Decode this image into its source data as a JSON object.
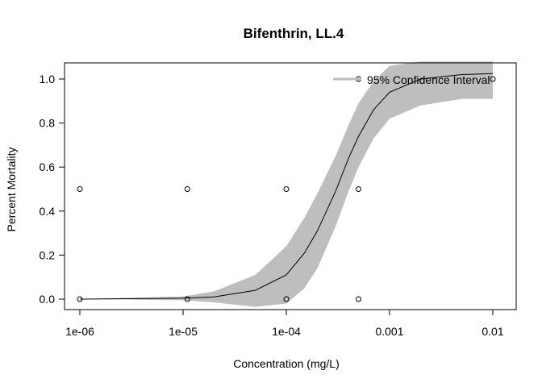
{
  "chart_data": {
    "type": "scatter",
    "title": "Bifenthrin, LL.4",
    "xlabel": "Concentration (mg/L)",
    "ylabel": "Percent Mortality",
    "xscale": "log",
    "xlim": [
      1e-06,
      0.01
    ],
    "ylim": [
      0,
      1
    ],
    "x_ticks": [
      1e-06,
      1e-05,
      0.0001,
      0.001,
      0.01
    ],
    "x_tick_labels": [
      "1e-06",
      "1e-05",
      "1e-04",
      "0.001",
      "0.01"
    ],
    "y_ticks": [
      0,
      0.2,
      0.4,
      0.6,
      0.8,
      1
    ],
    "y_tick_labels": [
      "0.0",
      "0.2",
      "0.4",
      "0.6",
      "0.8",
      "1.0"
    ],
    "legend": {
      "position": "top-right",
      "label": "95% Confidence Interval",
      "color": "#bebebe"
    },
    "points": [
      {
        "x": 1e-06,
        "y": 0.5
      },
      {
        "x": 1e-06,
        "y": 0.0
      },
      {
        "x": 1.1e-05,
        "y": 0.5
      },
      {
        "x": 1.1e-05,
        "y": 0.0
      },
      {
        "x": 0.0001,
        "y": 0.5
      },
      {
        "x": 0.0001,
        "y": 0.0
      },
      {
        "x": 0.0005,
        "y": 1.0
      },
      {
        "x": 0.0005,
        "y": 0.5
      },
      {
        "x": 0.0005,
        "y": 0.0
      },
      {
        "x": 0.01,
        "y": 1.0
      }
    ],
    "fitted_curve": {
      "x": [
        1e-06,
        1e-05,
        2e-05,
        5e-05,
        0.0001,
        0.00015,
        0.0002,
        0.0003,
        0.0004,
        0.0005,
        0.0007,
        0.001,
        0.002,
        0.005,
        0.01
      ],
      "y": [
        0.0,
        0.004,
        0.01,
        0.04,
        0.11,
        0.21,
        0.31,
        0.49,
        0.64,
        0.74,
        0.86,
        0.94,
        1.0,
        1.02,
        1.025
      ]
    },
    "confidence_band": {
      "x": [
        1e-06,
        1e-05,
        2e-05,
        5e-05,
        0.0001,
        0.00015,
        0.0002,
        0.0003,
        0.0004,
        0.0005,
        0.0007,
        0.001,
        0.002,
        0.005,
        0.01
      ],
      "lower": [
        0.0,
        -0.005,
        -0.015,
        -0.035,
        -0.02,
        0.05,
        0.14,
        0.33,
        0.49,
        0.6,
        0.73,
        0.82,
        0.88,
        0.91,
        0.91
      ],
      "upper": [
        0.0,
        0.012,
        0.035,
        0.11,
        0.24,
        0.37,
        0.48,
        0.65,
        0.79,
        0.89,
        0.99,
        1.06,
        1.08,
        1.08,
        1.08
      ]
    },
    "colors": {
      "band": "#bebebe",
      "line": "#000000",
      "points": "#000000"
    }
  }
}
